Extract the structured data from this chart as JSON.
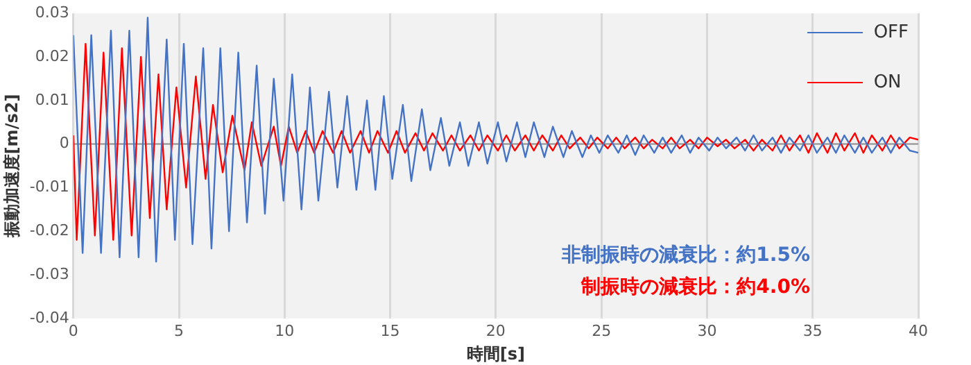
{
  "chart_data": {
    "type": "line",
    "xlabel": "時間[s]",
    "ylabel": "振動加速度[m/s2]",
    "xlim": [
      0,
      40
    ],
    "xticks": [
      0,
      5,
      10,
      15,
      20,
      25,
      30,
      35,
      40
    ],
    "ylim": [
      -0.04,
      0.03
    ],
    "yticks": [
      -0.04,
      -0.03,
      -0.02,
      -0.01,
      0,
      0.01,
      0.02,
      0.03
    ],
    "grid": "x",
    "legend": "top right",
    "marker": "none",
    "line_style": "solid",
    "annotations": [
      "非制振時の減衰比：約1.5%",
      "制振時の減衰比：約4.0%"
    ],
    "series": [
      {
        "name": "OFF",
        "color": "#4472c4",
        "x": [
          0,
          0.44,
          0.85,
          1.31,
          1.78,
          2.19,
          2.65,
          3.09,
          3.52,
          3.92,
          4.42,
          4.81,
          5.23,
          5.64,
          6.15,
          6.54,
          6.96,
          7.37,
          7.81,
          8.22,
          8.68,
          9.07,
          9.49,
          9.95,
          10.36,
          10.8,
          11.2,
          11.6,
          12.1,
          12.5,
          12.96,
          13.4,
          13.9,
          14.3,
          14.7,
          15.1,
          15.6,
          16,
          16.5,
          16.9,
          17.4,
          17.8,
          18.3,
          18.7,
          19.2,
          19.6,
          20.1,
          20.5,
          21,
          21.4,
          21.8,
          22.3,
          22.7,
          23.2,
          23.6,
          24.1,
          24.5,
          24.9,
          25.3,
          25.8,
          26.2,
          26.6,
          27,
          27.5,
          27.9,
          28.3,
          28.8,
          29.2,
          29.6,
          30.1,
          30.5,
          30.9,
          31.4,
          31.8,
          32.2,
          32.6,
          33.1,
          33.5,
          33.9,
          34.4,
          34.8,
          35.2,
          35.7,
          36.1,
          36.5,
          37,
          37.4,
          37.8,
          38.3,
          38.7,
          39.1,
          39.6,
          40
        ],
        "values": [
          0.025,
          -0.025,
          0.025,
          -0.025,
          0.026,
          -0.026,
          0.026,
          -0.026,
          0.029,
          -0.027,
          0.024,
          -0.022,
          0.023,
          -0.023,
          0.022,
          -0.024,
          0.022,
          -0.02,
          0.021,
          -0.018,
          0.018,
          -0.016,
          0.015,
          -0.013,
          0.016,
          -0.015,
          0.013,
          -0.013,
          0.012,
          -0.01,
          0.011,
          -0.0105,
          0.01,
          -0.0105,
          0.011,
          -0.008,
          0.009,
          -0.0085,
          0.008,
          -0.006,
          0.006,
          -0.005,
          0.005,
          -0.005,
          0.005,
          -0.0045,
          0.005,
          -0.004,
          0.005,
          -0.003,
          0.005,
          -0.003,
          0.004,
          -0.003,
          0.003,
          -0.003,
          0.002,
          -0.002,
          0.002,
          -0.002,
          0.002,
          -0.0025,
          0.002,
          -0.002,
          0.0015,
          -0.002,
          0.002,
          -0.002,
          0.0015,
          -0.0015,
          0.0015,
          -0.001,
          0.0015,
          -0.0015,
          0.002,
          -0.0015,
          0.0015,
          -0.002,
          0.0015,
          -0.0015,
          0.002,
          -0.002,
          0.0015,
          -0.002,
          0.002,
          -0.002,
          0.0015,
          -0.002,
          0.0015,
          -0.002,
          0.0015,
          -0.0015,
          -0.002
        ]
      },
      {
        "name": "ON",
        "color": "#ff0000",
        "x": [
          0,
          0.16,
          0.58,
          1.02,
          1.43,
          1.89,
          2.3,
          2.76,
          3.2,
          3.62,
          4.03,
          4.42,
          4.88,
          5.34,
          5.8,
          6.26,
          6.61,
          7.07,
          7.53,
          8.1,
          8.45,
          8.9,
          9.49,
          9.83,
          10.2,
          10.6,
          11,
          11.4,
          11.8,
          12.3,
          12.7,
          13.1,
          13.6,
          14,
          14.4,
          14.9,
          15.3,
          15.7,
          16.2,
          16.6,
          17,
          17.5,
          17.9,
          18.3,
          18.8,
          19.2,
          19.6,
          20.1,
          20.5,
          20.9,
          21.4,
          21.8,
          22.2,
          22.7,
          23.1,
          23.5,
          24,
          24.4,
          24.8,
          25.3,
          25.7,
          26.1,
          26.6,
          27,
          27.4,
          27.9,
          28.3,
          28.7,
          29.2,
          29.6,
          30,
          30.5,
          30.9,
          31.3,
          31.8,
          32.2,
          32.6,
          33.1,
          33.5,
          33.9,
          34.4,
          34.8,
          35.2,
          35.7,
          36.1,
          36.5,
          37,
          37.4,
          37.8,
          38.3,
          38.7,
          39.1,
          39.6,
          40
        ],
        "values": [
          0.002,
          -0.022,
          0.023,
          -0.021,
          0.021,
          -0.022,
          0.022,
          -0.021,
          0.02,
          -0.017,
          0.016,
          -0.015,
          0.013,
          -0.01,
          0.0155,
          -0.008,
          0.009,
          -0.0065,
          0.0065,
          -0.006,
          0.005,
          -0.005,
          0.004,
          -0.005,
          0.004,
          -0.002,
          0.003,
          -0.002,
          0.003,
          -0.002,
          0.003,
          -0.002,
          0.003,
          -0.002,
          0.003,
          -0.002,
          0.003,
          -0.002,
          0.0025,
          -0.0015,
          0.0025,
          -0.0015,
          0.002,
          -0.0015,
          0.002,
          -0.0015,
          0.002,
          -0.0015,
          0.002,
          -0.0015,
          0.002,
          -0.0015,
          0.002,
          -0.0015,
          0.002,
          -0.001,
          0.0015,
          -0.001,
          0.0015,
          -0.001,
          0.0015,
          -0.001,
          0.0015,
          -0.001,
          0.001,
          -0.001,
          0.0015,
          -0.001,
          0.001,
          -0.001,
          0.0015,
          -0.0005,
          0.001,
          -0.001,
          0.001,
          -0.0015,
          0.001,
          -0.0015,
          0.002,
          -0.0015,
          0.002,
          -0.002,
          0.0025,
          -0.002,
          0.0025,
          -0.0015,
          0.0025,
          -0.002,
          0.002,
          -0.0015,
          0.002,
          -0.001,
          0.0015,
          0.001
        ]
      }
    ]
  }
}
